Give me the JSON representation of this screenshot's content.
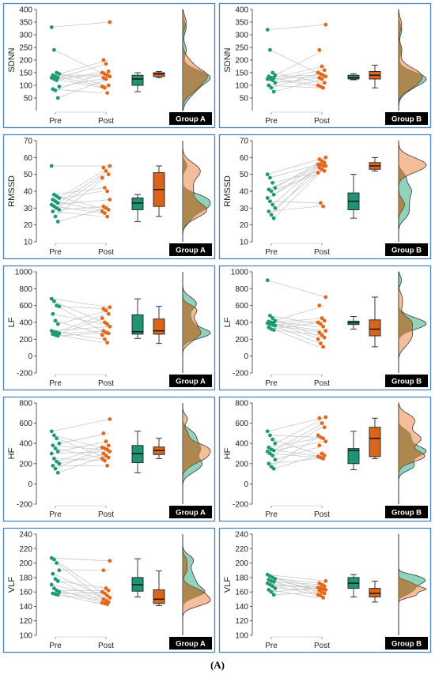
{
  "caption": "(A)",
  "style": {
    "pre_color": "#1d9a74",
    "post_color": "#e4661b",
    "box_pre_fill": "#1f9474",
    "box_post_fill": "#d9641a",
    "density_pre_fill": "#6fc3a3",
    "density_post_fill": "#f0a77a",
    "density_overlap_fill": "#9c7a3c",
    "panel_border": "#4a86c5",
    "line_color": "#c8c8c8",
    "badge_bg": "#000000",
    "badge_text": "#ffffff"
  },
  "chart_data": [
    {
      "type": "raincloud",
      "ylabel": "SDNN",
      "group": "Group A",
      "ylim": [
        0,
        400
      ],
      "yticks": [
        50,
        100,
        150,
        200,
        250,
        300,
        350,
        400
      ],
      "xticks": [
        "Pre",
        "Post"
      ],
      "pre": [
        330,
        240,
        150,
        145,
        140,
        135,
        130,
        130,
        125,
        120,
        95,
        85,
        80,
        50
      ],
      "post": [
        350,
        200,
        185,
        155,
        150,
        145,
        140,
        135,
        130,
        125,
        100,
        95,
        90,
        70
      ],
      "pre_box": {
        "min": 75,
        "q1": 100,
        "median": 125,
        "q3": 140,
        "max": 150
      },
      "post_box": {
        "min": 130,
        "q1": 135,
        "median": 145,
        "q3": 150,
        "max": 155
      }
    },
    {
      "type": "raincloud",
      "ylabel": "SDNN",
      "group": "Group B",
      "ylim": [
        0,
        400
      ],
      "yticks": [
        50,
        100,
        150,
        200,
        250,
        300,
        350,
        400
      ],
      "xticks": [
        "Pre",
        "Post"
      ],
      "pre": [
        320,
        240,
        150,
        140,
        135,
        130,
        130,
        125,
        125,
        120,
        110,
        100,
        90,
        75
      ],
      "post": [
        340,
        240,
        175,
        160,
        150,
        145,
        140,
        135,
        130,
        125,
        110,
        100,
        95,
        90
      ],
      "pre_box": {
        "min": 122,
        "q1": 125,
        "median": 130,
        "q3": 140,
        "max": 145
      },
      "post_box": {
        "min": 90,
        "q1": 125,
        "median": 140,
        "q3": 155,
        "max": 180
      }
    },
    {
      "type": "raincloud",
      "ylabel": "RMSSD",
      "group": "Group A",
      "ylim": [
        10,
        70
      ],
      "yticks": [
        10,
        20,
        30,
        40,
        50,
        60,
        70
      ],
      "xticks": [
        "Pre",
        "Post"
      ],
      "pre": [
        55,
        38,
        37,
        36,
        35,
        34,
        33,
        32,
        31,
        30,
        29,
        28,
        25,
        22
      ],
      "post": [
        55,
        54,
        52,
        50,
        48,
        42,
        40,
        35,
        31,
        30,
        29,
        28,
        27,
        25
      ],
      "pre_box": {
        "min": 22,
        "q1": 29,
        "median": 33,
        "q3": 36,
        "max": 38
      },
      "post_box": {
        "min": 25,
        "q1": 31,
        "median": 41,
        "q3": 51,
        "max": 55
      }
    },
    {
      "type": "raincloud",
      "ylabel": "RMSSD",
      "group": "Group B",
      "ylim": [
        10,
        70
      ],
      "yticks": [
        10,
        20,
        30,
        40,
        50,
        60,
        70
      ],
      "xticks": [
        "Pre",
        "Post"
      ],
      "pre": [
        50,
        48,
        45,
        42,
        41,
        40,
        38,
        36,
        34,
        32,
        30,
        28,
        26,
        24
      ],
      "post": [
        60,
        59,
        58,
        57,
        56,
        56,
        55,
        55,
        54,
        53,
        52,
        51,
        33,
        31
      ],
      "pre_box": {
        "min": 24,
        "q1": 29,
        "median": 34,
        "q3": 39,
        "max": 50
      },
      "post_box": {
        "min": 52,
        "q1": 53,
        "median": 55,
        "q3": 57,
        "max": 60
      }
    },
    {
      "type": "raincloud",
      "ylabel": "LF",
      "group": "Group A",
      "ylim": [
        -200,
        1000
      ],
      "yticks": [
        -200,
        0,
        200,
        400,
        600,
        800,
        1000
      ],
      "xticks": [
        "Pre",
        "Post"
      ],
      "pre": [
        680,
        650,
        600,
        590,
        500,
        420,
        380,
        300,
        290,
        280,
        270,
        260,
        250,
        240
      ],
      "post": [
        580,
        560,
        540,
        500,
        450,
        400,
        380,
        350,
        300,
        280,
        270,
        250,
        200,
        160
      ],
      "pre_box": {
        "min": 210,
        "q1": 260,
        "median": 290,
        "q3": 490,
        "max": 680
      },
      "post_box": {
        "min": 150,
        "q1": 260,
        "median": 300,
        "q3": 440,
        "max": 590
      }
    },
    {
      "type": "raincloud",
      "ylabel": "LF",
      "group": "Group B",
      "ylim": [
        -200,
        1000
      ],
      "yticks": [
        -200,
        0,
        200,
        400,
        600,
        800,
        1000
      ],
      "xticks": [
        "Pre",
        "Post"
      ],
      "pre": [
        900,
        480,
        450,
        420,
        410,
        400,
        400,
        390,
        380,
        370,
        360,
        340,
        320,
        310
      ],
      "post": [
        700,
        600,
        450,
        420,
        400,
        380,
        350,
        300,
        280,
        250,
        220,
        200,
        150,
        110
      ],
      "pre_box": {
        "min": 320,
        "q1": 375,
        "median": 395,
        "q3": 415,
        "max": 470
      },
      "post_box": {
        "min": 110,
        "q1": 240,
        "median": 320,
        "q3": 430,
        "max": 700
      }
    },
    {
      "type": "raincloud",
      "ylabel": "HF",
      "group": "Group A",
      "ylim": [
        -200,
        800
      ],
      "yticks": [
        -200,
        0,
        200,
        400,
        600,
        800
      ],
      "xticks": [
        "Pre",
        "Post"
      ],
      "pre": [
        520,
        480,
        450,
        400,
        380,
        350,
        320,
        300,
        250,
        220,
        200,
        180,
        150,
        110
      ],
      "post": [
        640,
        500,
        420,
        380,
        360,
        350,
        340,
        320,
        300,
        280,
        260,
        250,
        230,
        180
      ],
      "pre_box": {
        "min": 110,
        "q1": 210,
        "median": 300,
        "q3": 380,
        "max": 520
      },
      "post_box": {
        "min": 250,
        "q1": 290,
        "median": 330,
        "q3": 365,
        "max": 450
      }
    },
    {
      "type": "raincloud",
      "ylabel": "HF",
      "group": "Group B",
      "ylim": [
        -200,
        800
      ],
      "yticks": [
        -200,
        0,
        200,
        400,
        600,
        800
      ],
      "xticks": [
        "Pre",
        "Post"
      ],
      "pre": [
        520,
        480,
        440,
        400,
        360,
        340,
        330,
        320,
        300,
        280,
        240,
        200,
        170,
        150
      ],
      "post": [
        660,
        650,
        600,
        560,
        480,
        460,
        450,
        420,
        380,
        300,
        280,
        270,
        260,
        250
      ],
      "pre_box": {
        "min": 140,
        "q1": 200,
        "median": 330,
        "q3": 350,
        "max": 520
      },
      "post_box": {
        "min": 250,
        "q1": 270,
        "median": 450,
        "q3": 560,
        "max": 650
      }
    },
    {
      "type": "raincloud",
      "ylabel": "VLF",
      "group": "Group A",
      "ylim": [
        100,
        240
      ],
      "yticks": [
        100,
        120,
        140,
        160,
        180,
        200,
        220,
        240
      ],
      "xticks": [
        "Pre",
        "Post"
      ],
      "pre": [
        207,
        205,
        200,
        190,
        185,
        178,
        175,
        170,
        165,
        162,
        160,
        158,
        157,
        156
      ],
      "post": [
        203,
        190,
        165,
        162,
        160,
        158,
        155,
        152,
        150,
        148,
        146,
        145,
        144,
        143
      ],
      "pre_box": {
        "min": 153,
        "q1": 161,
        "median": 170,
        "q3": 180,
        "max": 206
      },
      "post_box": {
        "min": 141,
        "q1": 144,
        "median": 150,
        "q3": 163,
        "max": 189
      }
    },
    {
      "type": "raincloud",
      "ylabel": "VLF",
      "group": "Group B",
      "ylim": [
        100,
        240
      ],
      "yticks": [
        100,
        120,
        140,
        160,
        180,
        200,
        220,
        240
      ],
      "xticks": [
        "Pre",
        "Post"
      ],
      "pre": [
        184,
        182,
        180,
        178,
        177,
        175,
        174,
        172,
        170,
        168,
        165,
        163,
        160,
        156
      ],
      "post": [
        175,
        172,
        170,
        168,
        166,
        165,
        164,
        163,
        162,
        160,
        158,
        156,
        155,
        152
      ],
      "pre_box": {
        "min": 153,
        "q1": 165,
        "median": 172,
        "q3": 180,
        "max": 184
      },
      "post_box": {
        "min": 146,
        "q1": 153,
        "median": 158,
        "q3": 165,
        "max": 175
      }
    }
  ]
}
